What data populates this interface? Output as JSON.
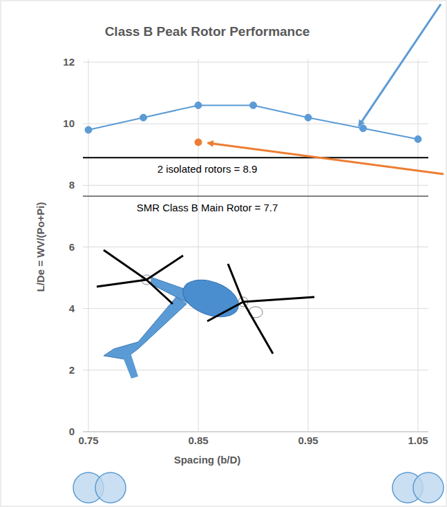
{
  "chart_data": {
    "type": "line",
    "title": "Class B Peak Rotor Performance",
    "x_label": "Spacing (b/D)",
    "y_label": "L/De = WV/(Po+Pi)",
    "xlim": [
      0.75,
      1.05
    ],
    "xticks": [
      0.75,
      0.85,
      0.95,
      1.05
    ],
    "ylim": [
      0,
      12
    ],
    "yticks": [
      0,
      2,
      4,
      6,
      8,
      10,
      12
    ],
    "grid": true,
    "series": [
      {
        "color": "#5b9bd5",
        "marker": "circle",
        "line_style": "solid",
        "x": [
          0.75,
          0.8,
          0.85,
          0.9,
          0.95,
          1.0,
          1.05
        ],
        "values": [
          9.8,
          10.2,
          10.6,
          10.6,
          10.2,
          9.85,
          9.5
        ]
      },
      {
        "type": "scatter",
        "color": "#ed7d31",
        "marker": "circle",
        "x": [
          0.85
        ],
        "values": [
          9.4
        ]
      }
    ],
    "reference_lines": [
      {
        "value": 8.9,
        "label": "2 isolated rotors = 8.9",
        "color": "#000000"
      },
      {
        "value": 7.65,
        "label": "SMR Class B Main Rotor = 7.7",
        "color": "#808080"
      }
    ]
  }
}
